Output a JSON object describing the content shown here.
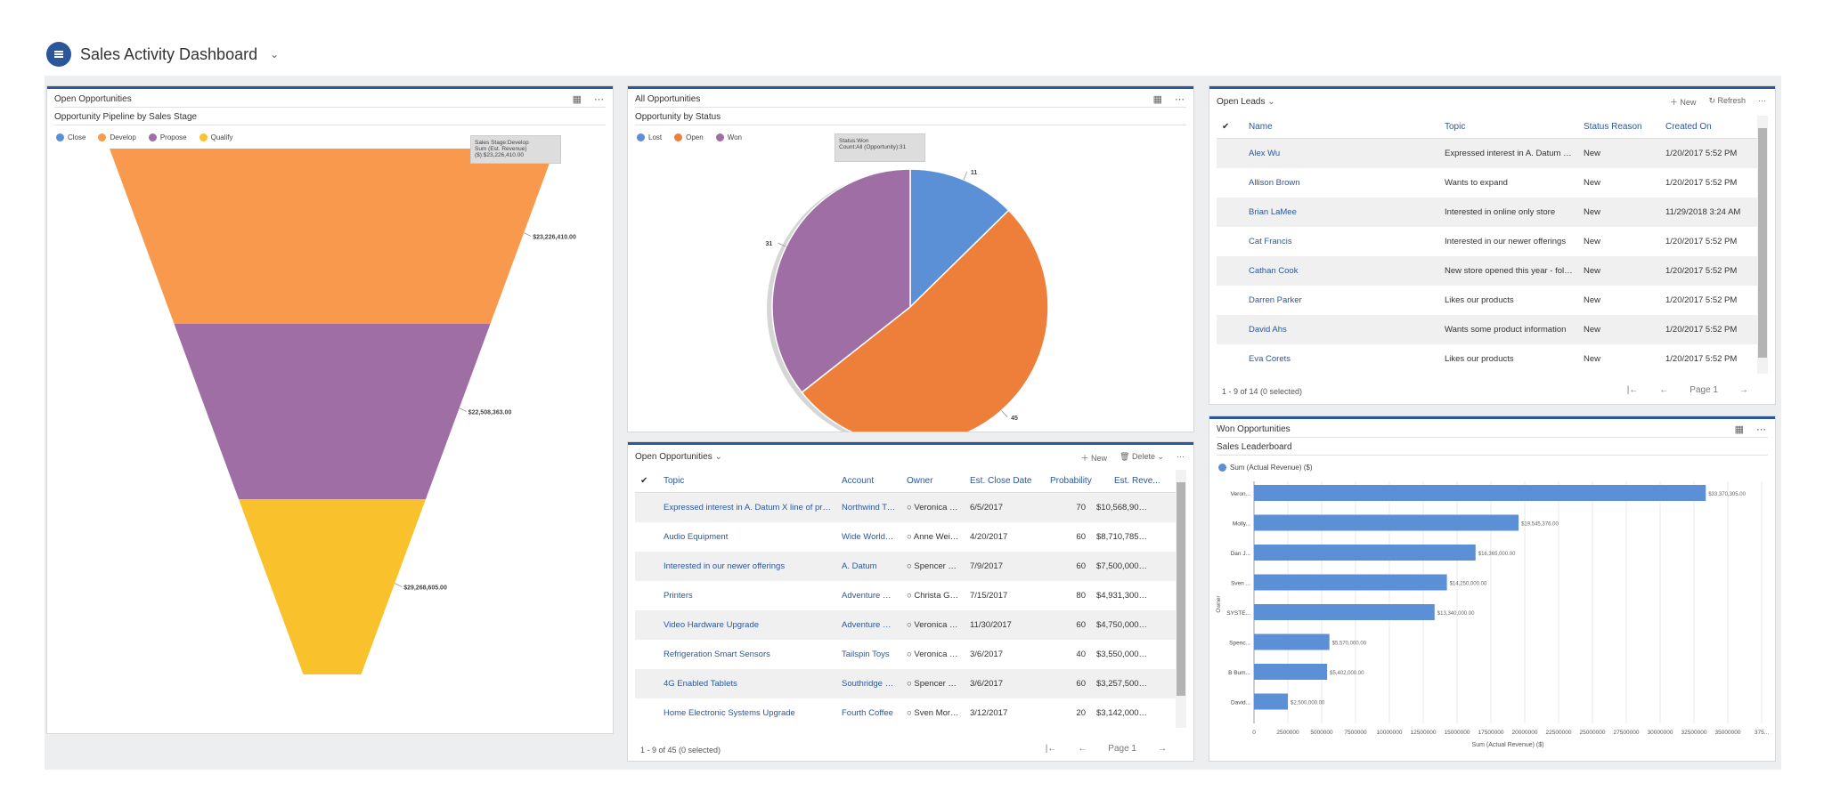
{
  "header": {
    "title": "Sales Activity Dashboard"
  },
  "funnel": {
    "title": "Open Opportunities",
    "subtitle": "Opportunity Pipeline by Sales Stage",
    "tooltip_line1": "Sales Stage:Develop",
    "tooltip_line2": "Sum (Est. Revenue) ($):$23,226,410.00",
    "chart_data": {
      "type": "funnel",
      "legend": [
        {
          "name": "Close",
          "color": "#5b8fd6"
        },
        {
          "name": "Develop",
          "color": "#f9994d"
        },
        {
          "name": "Propose",
          "color": "#9e6ea4"
        },
        {
          "name": "Qualify",
          "color": "#f9c12c"
        }
      ],
      "segments": [
        {
          "name": "Develop",
          "value": 23226410,
          "label": "$23,226,410.00",
          "color": "#f9994d"
        },
        {
          "name": "Propose",
          "value": 22508363,
          "label": "$22,508,363.00",
          "color": "#9e6ea4"
        },
        {
          "name": "Qualify",
          "value": 29268605,
          "label": "$29,268,605.00",
          "color": "#f9c12c"
        }
      ]
    }
  },
  "pie": {
    "title": "All Opportunities",
    "subtitle": "Opportunity by Status",
    "tooltip_line1": "Status:Won",
    "tooltip_line2": "Count:All (Opportunity):31",
    "chart_data": {
      "type": "pie",
      "legend": [
        {
          "name": "Lost",
          "color": "#5b8fd6"
        },
        {
          "name": "Open",
          "color": "#ee7f3a"
        },
        {
          "name": "Won",
          "color": "#9e6ea4"
        }
      ],
      "slices": [
        {
          "name": "Lost",
          "value": 11,
          "color": "#5b8fd6"
        },
        {
          "name": "Open",
          "value": 45,
          "color": "#ee7f3a"
        },
        {
          "name": "Won",
          "value": 31,
          "color": "#9e6ea4"
        }
      ]
    }
  },
  "leads": {
    "title": "Open Leads",
    "new_label": "New",
    "refresh_label": "Refresh",
    "columns": [
      "Name",
      "Topic",
      "Status Reason",
      "Created On"
    ],
    "rows": [
      {
        "name": "Alex Wu",
        "topic": "Expressed interest in A. Datum X...",
        "status": "New",
        "created": "1/20/2017 5:52 PM"
      },
      {
        "name": "Allison Brown",
        "topic": "Wants to expand",
        "status": "New",
        "created": "1/20/2017 5:52 PM"
      },
      {
        "name": "Brian LaMee",
        "topic": "Interested in online only store",
        "status": "New",
        "created": "11/29/2018 3:24 AM"
      },
      {
        "name": "Cat Francis",
        "topic": "Interested in our newer offerings",
        "status": "New",
        "created": "1/20/2017 5:52 PM"
      },
      {
        "name": "Cathan Cook",
        "topic": "New store opened this year - foll...",
        "status": "New",
        "created": "1/20/2017 5:52 PM"
      },
      {
        "name": "Darren Parker",
        "topic": "Likes our products",
        "status": "New",
        "created": "1/20/2017 5:52 PM"
      },
      {
        "name": "David Ahs",
        "topic": "Wants some product information",
        "status": "New",
        "created": "1/20/2017 5:52 PM"
      },
      {
        "name": "Eva Corets",
        "topic": "Likes our products",
        "status": "New",
        "created": "1/20/2017 5:52 PM"
      }
    ],
    "footer": "1 - 9 of 14 (0 selected)",
    "page": "Page 1"
  },
  "opps": {
    "title": "Open Opportunities",
    "new_label": "New",
    "delete_label": "Delete",
    "columns": [
      "Topic",
      "Account",
      "Owner",
      "Est. Close Date",
      "Probability",
      "Est. Reve..."
    ],
    "rows": [
      {
        "topic": "Expressed interest in A. Datum X line of printers",
        "account": "Northwind Tr...",
        "owner": "Veronica Que",
        "close": "6/5/2017",
        "prob": "70",
        "rev": "$10,568,900...."
      },
      {
        "topic": "Audio Equipment",
        "account": "Wide World I...",
        "owner": "Anne Weiler (",
        "close": "4/20/2017",
        "prob": "60",
        "rev": "$8,710,785.0("
      },
      {
        "topic": "Interested in our newer offerings",
        "account": "A. Datum",
        "owner": "Spencer Low",
        "close": "7/9/2017",
        "prob": "60",
        "rev": "$7,500,000.0("
      },
      {
        "topic": "Printers",
        "account": "Adventure W...",
        "owner": "Christa Geller",
        "close": "7/15/2017",
        "prob": "80",
        "rev": "$4,931,300.0("
      },
      {
        "topic": "Video Hardware Upgrade",
        "account": "Adventure W...",
        "owner": "Veronica Que",
        "close": "11/30/2017",
        "prob": "60",
        "rev": "$4,750,000.0("
      },
      {
        "topic": "Refrigeration Smart Sensors",
        "account": "Tailspin Toys",
        "owner": "Veronica Que",
        "close": "3/6/2017",
        "prob": "40",
        "rev": "$3,550,000.0("
      },
      {
        "topic": "4G Enabled Tablets",
        "account": "Southridge V...",
        "owner": "Spencer Low",
        "close": "3/6/2017",
        "prob": "60",
        "rev": "$3,257,500.0("
      },
      {
        "topic": "Home Electronic Systems Upgrade",
        "account": "Fourth Coffee",
        "owner": "Sven Morten.",
        "close": "3/12/2017",
        "prob": "20",
        "rev": "$3,142,000.0("
      }
    ],
    "footer": "1 - 9 of 45 (0 selected)",
    "page": "Page 1"
  },
  "won": {
    "title": "Won Opportunities",
    "subtitle": "Sales Leaderboard",
    "chart_data": {
      "type": "bar",
      "orientation": "horizontal",
      "legend": "Sum (Actual Revenue) ($)",
      "series_color": "#5b8fd6",
      "ylabel": "Owner",
      "xlabel": "Sum (Actual Revenue) ($)",
      "categories": [
        "Veron...",
        "Molly...",
        "Dan J...",
        "Sven ...",
        "SYSTE...",
        "Spenc...",
        "B Bum...",
        "David..."
      ],
      "values": [
        33370305,
        19545376,
        16365000,
        14250000,
        13340000,
        5570000,
        5402000,
        2500000
      ],
      "labels": [
        "$33,370,305.00",
        "$19,545,376.00",
        "$16,365,000.00",
        "$14,250,000.00",
        "$13,340,000.00",
        "$5,570,000.00",
        "$5,402,000.00",
        "$2,500,000.00"
      ],
      "xticks": [
        "0",
        "2500000",
        "5000000",
        "7500000",
        "10000000",
        "12500000",
        "15000000",
        "17500000",
        "20000000",
        "22500000",
        "25000000",
        "27500000",
        "30000000",
        "32500000",
        "35000000",
        "375..."
      ],
      "xlim": [
        0,
        37500000
      ]
    }
  }
}
